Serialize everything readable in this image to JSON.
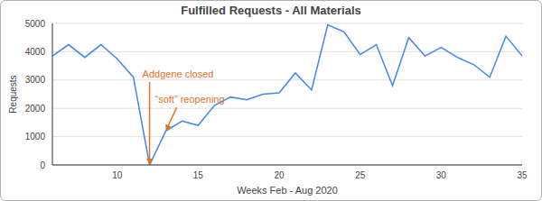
{
  "chart_data": {
    "type": "line",
    "title": "Fulfilled Requests - All Materials",
    "x_label": "Weeks Feb - Aug 2020",
    "y_label": "Requests",
    "x": [
      6,
      7,
      8,
      9,
      10,
      11,
      12,
      13,
      14,
      15,
      16,
      17,
      18,
      19,
      20,
      21,
      22,
      23,
      24,
      25,
      26,
      27,
      28,
      29,
      30,
      31,
      32,
      33,
      34,
      35
    ],
    "values": [
      3850,
      4250,
      3800,
      4250,
      3750,
      3100,
      0,
      1200,
      1550,
      1400,
      2100,
      2400,
      2300,
      2500,
      2550,
      3250,
      2650,
      4950,
      4700,
      3900,
      4250,
      2800,
      4500,
      3850,
      4150,
      3800,
      3550,
      3100,
      4550,
      3850
    ],
    "color": "#4285f4",
    "xlim": [
      6,
      35
    ],
    "xticks": [
      10,
      15,
      20,
      25,
      30,
      35
    ],
    "ylim": [
      0,
      5000
    ],
    "yticks": [
      0,
      1000,
      2000,
      3000,
      4000,
      5000
    ],
    "grid": true,
    "annotations": [
      {
        "text": "Addgene closed",
        "x": 12,
        "y": 0,
        "color": "#e8711c"
      },
      {
        "text": "“soft” reopening",
        "x": 13,
        "y": 1200,
        "color": "#e8711c"
      }
    ]
  }
}
